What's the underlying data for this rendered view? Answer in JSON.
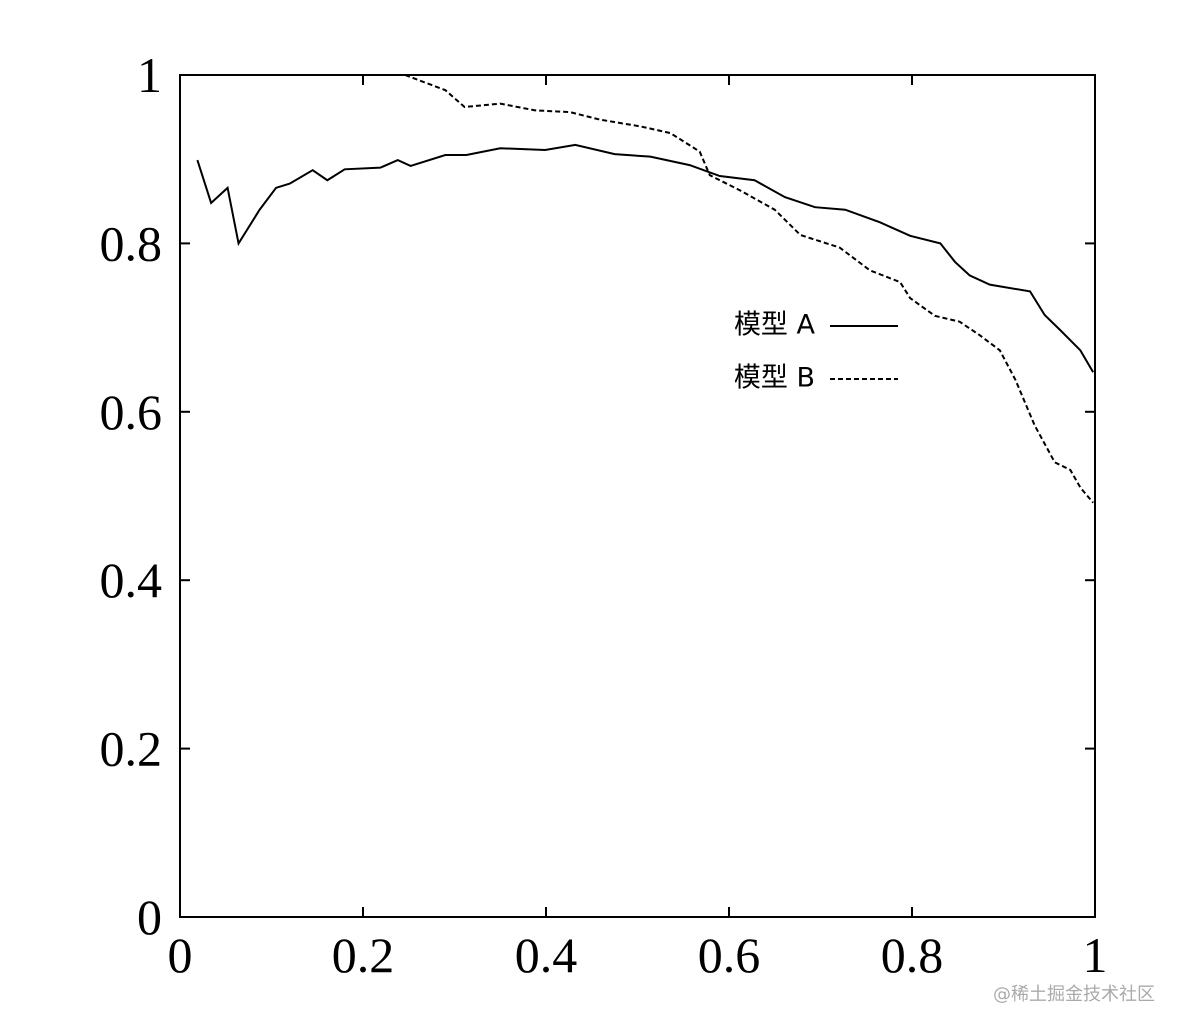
{
  "chart_data": {
    "type": "line",
    "xlim": [
      0,
      1
    ],
    "ylim": [
      0,
      1
    ],
    "xticks": [
      0,
      0.2,
      0.4,
      0.6,
      0.8,
      1
    ],
    "yticks": [
      0,
      0.2,
      0.4,
      0.6,
      0.8,
      1
    ],
    "grid": false,
    "legend": "upper right",
    "series": [
      {
        "name": "模型 A",
        "color": "#000000",
        "line_style": "solid",
        "x": [
          0.019,
          0.034,
          0.052,
          0.064,
          0.087,
          0.105,
          0.12,
          0.145,
          0.161,
          0.18,
          0.219,
          0.238,
          0.252,
          0.29,
          0.313,
          0.35,
          0.399,
          0.432,
          0.475,
          0.514,
          0.557,
          0.59,
          0.628,
          0.661,
          0.694,
          0.727,
          0.765,
          0.798,
          0.831,
          0.847,
          0.863,
          0.885,
          0.929,
          0.945,
          0.962,
          0.984,
          0.998
        ],
        "values": [
          0.899,
          0.848,
          0.866,
          0.8,
          0.84,
          0.866,
          0.871,
          0.887,
          0.875,
          0.888,
          0.89,
          0.899,
          0.892,
          0.905,
          0.905,
          0.913,
          0.911,
          0.917,
          0.906,
          0.903,
          0.893,
          0.88,
          0.875,
          0.855,
          0.843,
          0.84,
          0.825,
          0.809,
          0.8,
          0.778,
          0.762,
          0.751,
          0.743,
          0.715,
          0.697,
          0.673,
          0.647
        ]
      },
      {
        "name": "模型 B",
        "color": "#000000",
        "line_style": "dashed",
        "x": [
          0.246,
          0.29,
          0.311,
          0.35,
          0.388,
          0.426,
          0.459,
          0.503,
          0.536,
          0.568,
          0.579,
          0.612,
          0.65,
          0.678,
          0.721,
          0.754,
          0.787,
          0.798,
          0.825,
          0.852,
          0.874,
          0.896,
          0.913,
          0.934,
          0.956,
          0.973,
          0.984,
          0.998
        ],
        "values": [
          1.0,
          0.982,
          0.962,
          0.966,
          0.958,
          0.956,
          0.947,
          0.939,
          0.931,
          0.909,
          0.881,
          0.863,
          0.84,
          0.81,
          0.795,
          0.768,
          0.754,
          0.735,
          0.714,
          0.707,
          0.691,
          0.673,
          0.638,
          0.584,
          0.54,
          0.531,
          0.51,
          0.492
        ]
      }
    ],
    "watermark": "@稀土掘金技术社区"
  }
}
